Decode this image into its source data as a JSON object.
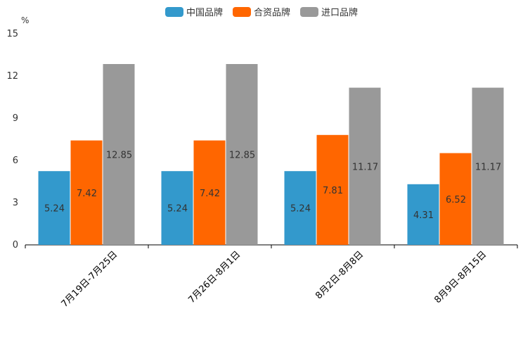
{
  "chart_data": {
    "type": "bar",
    "unit": "%",
    "categories": [
      "7月19日-7月25日",
      "7月26日-8月1日",
      "8月2日-8月8日",
      "8月9日-8月15日"
    ],
    "series": [
      {
        "name": "中国品牌",
        "color": "#3399cc",
        "values": [
          5.24,
          5.24,
          5.24,
          4.31
        ]
      },
      {
        "name": "合资品牌",
        "color": "#ff6600",
        "values": [
          7.42,
          7.42,
          7.81,
          6.52
        ]
      },
      {
        "name": "进口品牌",
        "color": "#999999",
        "values": [
          12.85,
          12.85,
          11.17,
          11.17
        ]
      }
    ],
    "yticks": [
      0,
      3,
      6,
      9,
      12,
      15
    ],
    "ylim": [
      0,
      15
    ],
    "legend_position": "top-center",
    "grid": false
  }
}
